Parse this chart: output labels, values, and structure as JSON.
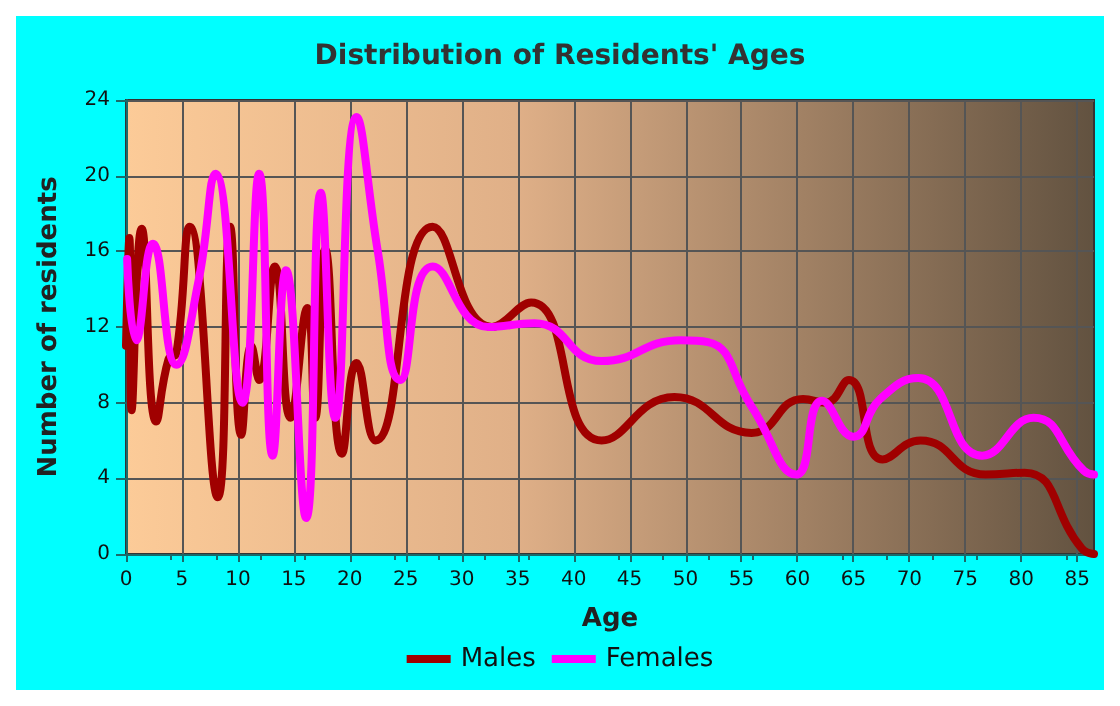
{
  "chart_data": {
    "type": "line",
    "title": "Distribution of Residents' Ages",
    "xlabel": "Age",
    "ylabel": "Number of residents",
    "xlim": [
      0,
      86.5
    ],
    "xticks": [
      0,
      5,
      10,
      15,
      20,
      25,
      30,
      35,
      40,
      45,
      50,
      55,
      60,
      65,
      70,
      75,
      80,
      85
    ],
    "ylim": [
      0,
      24
    ],
    "yticks": [
      0,
      4,
      8,
      12,
      16,
      20,
      24
    ],
    "grid": true,
    "legend": "bottom",
    "marker": "none",
    "line_style": "solid",
    "series": [
      {
        "name": "Males",
        "color": "#a00000",
        "x": [
          0,
          0.3,
          0.5,
          1.4,
          2.7,
          3.8,
          4.5,
          5.7,
          8.2,
          9.3,
          10.3,
          11.2,
          11.9,
          13.3,
          14.7,
          16.2,
          16.9,
          17.8,
          19.3,
          20.6,
          22.3,
          27.4,
          32.7,
          36.2,
          42.5,
          49,
          55.9,
          60.5,
          62.5,
          64.6,
          67.6,
          71,
          76.8,
          80.3,
          85.4,
          86.5
        ],
        "values": [
          11,
          16.7,
          7.6,
          17.2,
          7,
          10.3,
          10.6,
          17.3,
          3,
          17.3,
          6.3,
          11,
          9.2,
          15.2,
          7.2,
          13,
          7.2,
          16.1,
          5.3,
          10.1,
          6,
          17.3,
          12,
          13.3,
          6,
          8.3,
          6.4,
          8.2,
          8,
          9.2,
          5,
          6,
          4.2,
          4.3,
          0.3,
          0
        ]
      },
      {
        "name": "Females",
        "color": "#ff00ff",
        "x": [
          0.1,
          0.9,
          2.4,
          4.5,
          6.5,
          8,
          10.4,
          11.9,
          13.1,
          14.3,
          16.1,
          17.4,
          18.7,
          20.6,
          22.5,
          24.5,
          27.4,
          32.4,
          36.5,
          42.5,
          49.6,
          52,
          55.9,
          59.9,
          62.2,
          65,
          67.4,
          70.8,
          76.5,
          81.1,
          85.6,
          86.5
        ],
        "values": [
          15.6,
          11.3,
          16.4,
          10,
          14.5,
          20.1,
          8,
          20.1,
          5.2,
          15,
          1.9,
          19.1,
          7.2,
          23.1,
          16,
          9.2,
          15.2,
          12,
          12.2,
          10.2,
          11.3,
          11.2,
          7.8,
          4.2,
          8.1,
          6.2,
          8.2,
          9.3,
          5.2,
          7.2,
          4.4,
          4.2
        ]
      }
    ]
  }
}
